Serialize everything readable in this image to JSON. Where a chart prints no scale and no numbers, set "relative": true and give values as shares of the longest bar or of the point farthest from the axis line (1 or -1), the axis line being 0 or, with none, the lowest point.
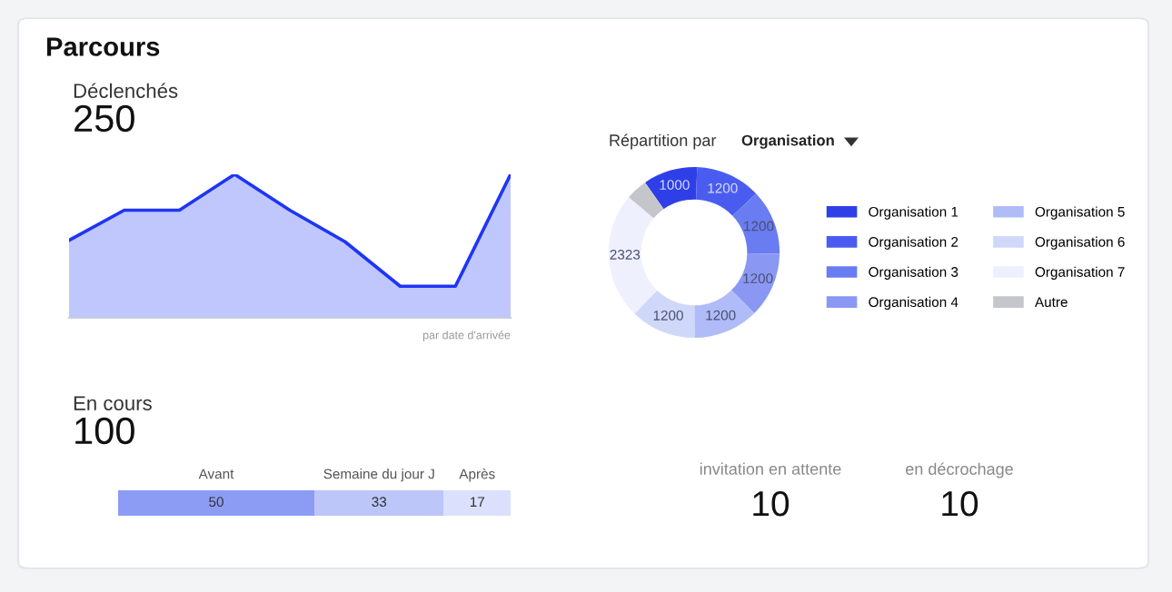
{
  "chart_data": [
    {
      "type": "area",
      "title": "Déclenchés",
      "subtitle": "250",
      "relative": true,
      "categories": [
        null,
        null,
        null,
        null,
        null,
        null,
        null,
        null,
        null
      ],
      "series": [
        {
          "color": "#1e35f5",
          "values": [
            0.54,
            0.75,
            0.75,
            1,
            0.75,
            0.53,
            0.22,
            0.22,
            1
          ],
          "line_style": "solid"
        }
      ],
      "annotations": [
        "par date d'arrivée"
      ]
    },
    {
      "type": "donut",
      "title": "Répartition par",
      "subtitle": "Organisation",
      "categories": [
        "Organisation 1",
        "Organisation 2",
        "Organisation 3",
        "Organisation 4",
        "Organisation 5",
        "Organisation 6",
        "Organisation 7",
        "Autre"
      ],
      "values": [
        1000,
        1200,
        1200,
        1200,
        1200,
        1200,
        2323,
        400
      ],
      "value_labels": [
        "1000",
        "1200",
        "1200",
        "1200",
        "1200",
        "1200",
        "2323",
        null
      ],
      "colors": [
        "#2f3fe8",
        "#4a5cf0",
        "#6a7cf2",
        "#8a98f4",
        "#b0bcf8",
        "#d0d8fa",
        "#eef1fd",
        "#c4c6cc"
      ],
      "legend": "right"
    },
    {
      "type": "bar",
      "title": "En cours",
      "subtitle": "100",
      "orientation": "horizontal",
      "stacked": true,
      "data_labels": true,
      "categories": [
        null
      ],
      "series": [
        {
          "name": "Avant",
          "color": "#8c9cf5",
          "values": [
            50
          ]
        },
        {
          "name": "Semaine du jour J",
          "color": "#bcc6f9",
          "values": [
            33
          ]
        },
        {
          "name": "Après",
          "color": "#dbe1fc",
          "values": [
            17
          ]
        }
      ]
    },
    {
      "type": "other",
      "title": "Parcours"
    },
    {
      "type": "other",
      "annotations": [
        "invitation en attente",
        "10",
        "en décrochage",
        "10"
      ]
    }
  ]
}
